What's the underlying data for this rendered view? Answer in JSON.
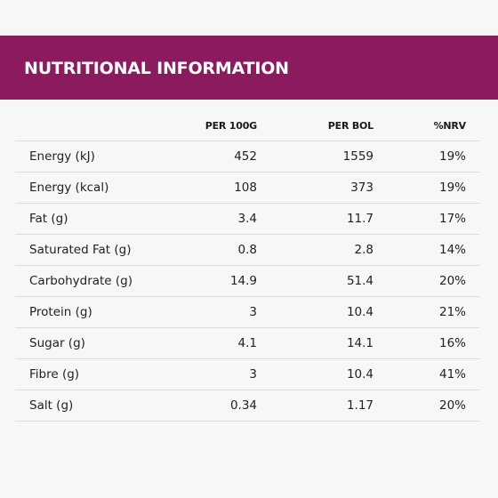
{
  "title": "NUTRITIONAL INFORMATION",
  "table": {
    "headers": [
      "",
      "PER 100G",
      "PER BOL",
      "%NRV"
    ],
    "rows": [
      {
        "label": "Energy (kJ)",
        "per100g": "452",
        "perbol": "1559",
        "nrv": "19%"
      },
      {
        "label": "Energy (kcal)",
        "per100g": "108",
        "perbol": "373",
        "nrv": "19%"
      },
      {
        "label": "Fat (g)",
        "per100g": "3.4",
        "perbol": "11.7",
        "nrv": "17%"
      },
      {
        "label": "Saturated Fat (g)",
        "per100g": "0.8",
        "perbol": "2.8",
        "nrv": "14%"
      },
      {
        "label": "Carbohydrate (g)",
        "per100g": "14.9",
        "perbol": "51.4",
        "nrv": "20%"
      },
      {
        "label": "Protein (g)",
        "per100g": "3",
        "perbol": "10.4",
        "nrv": "21%"
      },
      {
        "label": "Sugar (g)",
        "per100g": "4.1",
        "perbol": "14.1",
        "nrv": "16%"
      },
      {
        "label": "Fibre (g)",
        "per100g": "3",
        "perbol": "10.4",
        "nrv": "41%"
      },
      {
        "label": "Salt (g)",
        "per100g": "0.34",
        "perbol": "1.17",
        "nrv": "20%"
      }
    ]
  },
  "colors": {
    "banner": "#8b1a5e",
    "background": "#f7f7f7",
    "divider": "#dcdcdc"
  }
}
